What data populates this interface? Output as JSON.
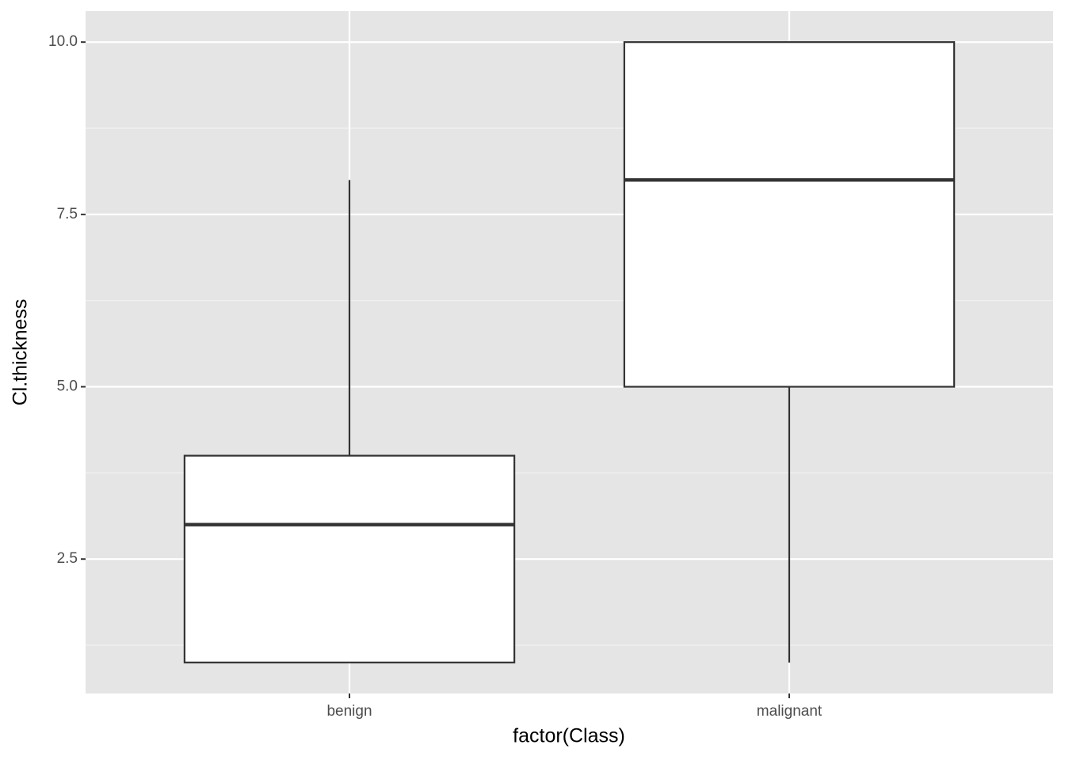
{
  "chart_data": {
    "type": "box",
    "x_label": "factor(Class)",
    "y_label": "Cl.thickness",
    "categories": [
      "benign",
      "malignant"
    ],
    "boxes": [
      {
        "min": 1,
        "q1": 1,
        "median": 3,
        "q3": 4,
        "max": 8
      },
      {
        "min": 1,
        "q1": 5,
        "median": 8,
        "q3": 10,
        "max": 10
      }
    ],
    "ylim": [
      0.55,
      10.45
    ],
    "yticks": [
      {
        "value": 2.5,
        "label": "2.5"
      },
      5,
      {
        "value": 5,
        "label": "5.0"
      },
      {
        "value": 7.5,
        "label": "7.5"
      },
      {
        "value": 10,
        "label": "10.0"
      }
    ],
    "grid": true,
    "panel_color": "#e5e5e5",
    "box_fill": "#ffffff",
    "line_color": "#333333"
  }
}
